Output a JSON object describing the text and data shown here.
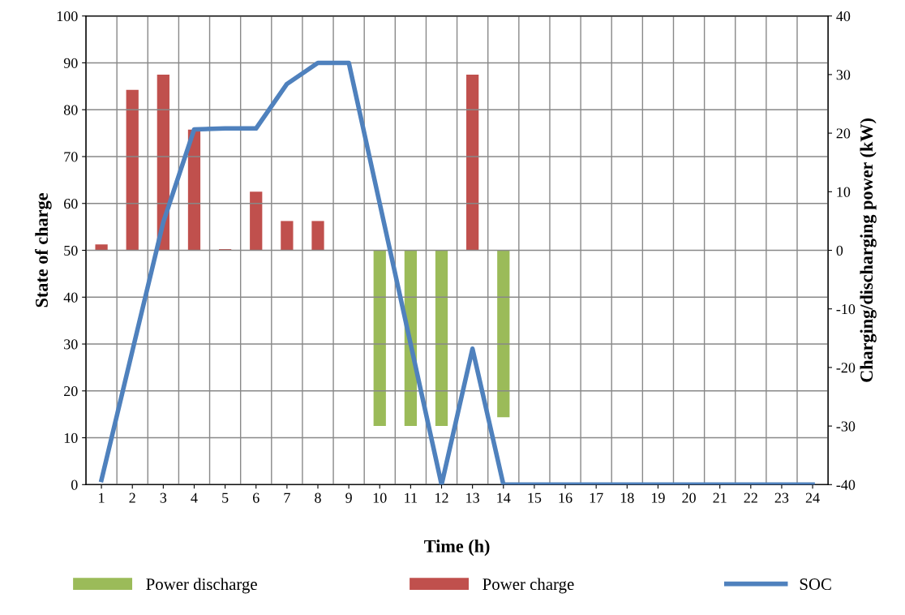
{
  "chart_data": {
    "type": "bar",
    "xlabel": "Time (h)",
    "ylabel": "State of charge",
    "y2label": "Charging/discharging power (kW)",
    "categories": [
      "1",
      "2",
      "3",
      "4",
      "5",
      "6",
      "7",
      "8",
      "9",
      "10",
      "11",
      "12",
      "13",
      "14",
      "15",
      "16",
      "17",
      "18",
      "19",
      "20",
      "21",
      "22",
      "23",
      "24"
    ],
    "series": [
      {
        "name": "Power discharge",
        "axis": "y2",
        "color": "#9bbb59",
        "values": [
          null,
          null,
          null,
          null,
          null,
          null,
          null,
          null,
          null,
          -30,
          -30,
          -30,
          null,
          -28.5,
          null,
          null,
          null,
          null,
          null,
          null,
          null,
          null,
          null,
          null
        ]
      },
      {
        "name": "Power charge",
        "axis": "y2",
        "color": "#c0504d",
        "values": [
          1,
          27.4,
          30,
          20.6,
          0.2,
          10,
          5,
          5,
          null,
          null,
          null,
          null,
          30,
          null,
          null,
          null,
          null,
          null,
          null,
          null,
          null,
          null,
          null,
          null
        ]
      },
      {
        "name": "SOC",
        "type": "line",
        "axis": "y",
        "color": "#4f81bd",
        "values": [
          1,
          28.5,
          56,
          75.8,
          76,
          76,
          85.5,
          90,
          90,
          60,
          30,
          0,
          29,
          0,
          0,
          0,
          0,
          0,
          0,
          0,
          0,
          0,
          0,
          0
        ]
      }
    ],
    "ylim": [
      0,
      100
    ],
    "yticks": [
      0,
      10,
      20,
      30,
      40,
      50,
      60,
      70,
      80,
      90,
      100
    ],
    "y2lim": [
      -40,
      40
    ],
    "y2ticks": [
      -40,
      -30,
      -20,
      -10,
      0,
      10,
      20,
      30,
      40
    ],
    "grid": true,
    "legend": "bottom",
    "marker": "none",
    "line_style": "solid"
  }
}
